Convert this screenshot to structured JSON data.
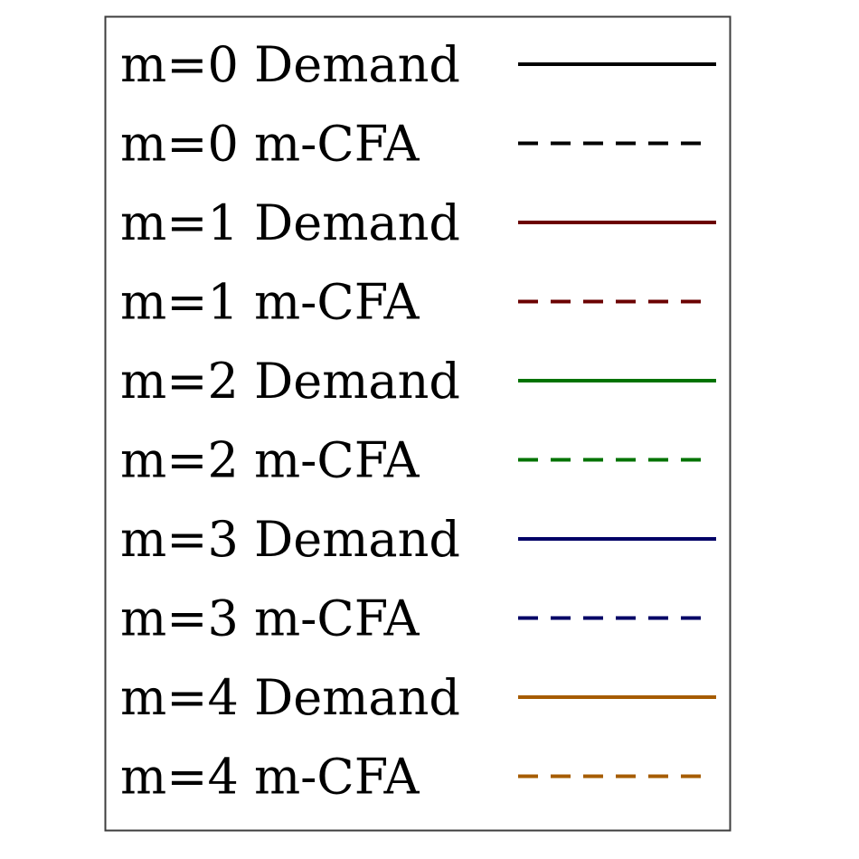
{
  "chart_data": {
    "type": "line",
    "legend_placement": "center",
    "legend_frame": true,
    "series": [
      {
        "name": "m=0 Demand",
        "color": "#000000",
        "linestyle": "solid"
      },
      {
        "name": "m=0 m-CFA",
        "color": "#000000",
        "linestyle": "dashed"
      },
      {
        "name": "m=1 Demand",
        "color": "#6b0000",
        "linestyle": "solid"
      },
      {
        "name": "m=1 m-CFA",
        "color": "#6b0000",
        "linestyle": "dashed"
      },
      {
        "name": "m=2 Demand",
        "color": "#007300",
        "linestyle": "solid"
      },
      {
        "name": "m=2 m-CFA",
        "color": "#007300",
        "linestyle": "dashed"
      },
      {
        "name": "m=3 Demand",
        "color": "#000066",
        "linestyle": "solid"
      },
      {
        "name": "m=3 m-CFA",
        "color": "#000066",
        "linestyle": "dashed"
      },
      {
        "name": "m=4 Demand",
        "color": "#a65c00",
        "linestyle": "solid"
      },
      {
        "name": "m=4 m-CFA",
        "color": "#a65c00",
        "linestyle": "dashed"
      }
    ]
  }
}
